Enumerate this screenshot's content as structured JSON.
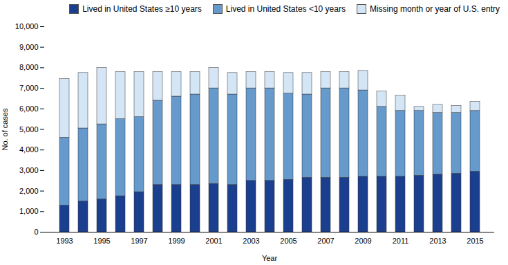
{
  "chart_data": {
    "type": "bar",
    "stacked": true,
    "xlabel": "Year",
    "ylabel": "No. of cases",
    "categories": [
      "1993",
      null,
      "1995",
      null,
      "1997",
      null,
      "1999",
      null,
      "2001",
      null,
      "2003",
      null,
      "2005",
      null,
      "2007",
      null,
      "2009",
      null,
      "2011",
      null,
      "2013",
      null,
      "2015"
    ],
    "series": [
      {
        "name": "Lived in United States ≥10 years",
        "color": "#1a3f8f",
        "values": [
          1300,
          1500,
          1600,
          1750,
          1950,
          2300,
          2300,
          2300,
          2350,
          2300,
          2500,
          2500,
          2550,
          2650,
          2650,
          2650,
          2700,
          2700,
          2700,
          2750,
          2800,
          2850,
          2950
        ]
      },
      {
        "name": "Lived in United States <10 years",
        "color": "#6699cc",
        "values": [
          3300,
          3550,
          3650,
          3750,
          3650,
          4100,
          4300,
          4400,
          4650,
          4400,
          4500,
          4500,
          4200,
          4050,
          4350,
          4350,
          4200,
          3400,
          3200,
          3150,
          3000,
          2950,
          2950
        ]
      },
      {
        "name": "Missing month or year of U.S. entry",
        "color": "#d4e6f5",
        "values": [
          2850,
          2700,
          2750,
          2300,
          2200,
          1400,
          1200,
          1100,
          1000,
          1050,
          800,
          800,
          1000,
          1050,
          800,
          800,
          950,
          750,
          750,
          200,
          400,
          350,
          450
        ]
      }
    ],
    "ylim": [
      0,
      10000
    ],
    "yticks": [
      0,
      {
        "value": 1000,
        "label": "1,000"
      },
      {
        "value": 2000,
        "label": "2,000"
      },
      {
        "value": 3000,
        "label": "3,000"
      },
      {
        "value": 4000,
        "label": "4,000"
      },
      {
        "value": 5000,
        "label": "5,000"
      },
      {
        "value": 6000,
        "label": "6,000"
      },
      {
        "value": 7000,
        "label": "7,000"
      },
      {
        "value": 8000,
        "label": "8,000"
      },
      {
        "value": 9000,
        "label": "9,000"
      },
      {
        "value": 10000,
        "label": "10,000"
      }
    ],
    "grid": false,
    "legend": "upper right"
  }
}
